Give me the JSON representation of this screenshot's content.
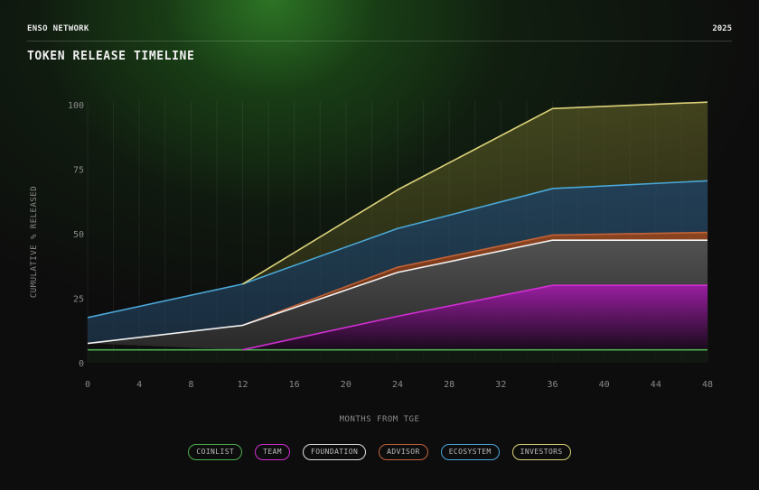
{
  "header": {
    "brand": "ENSO NETWORK",
    "year": "2025"
  },
  "title": "TOKEN RELEASE TIMELINE",
  "colors": {
    "coinlist": "#4caf50",
    "team": "#d12fd1",
    "foundation": "#f2f2f2",
    "advisor": "#c0643a",
    "ecosystem": "#4aa8d8",
    "investors": "#dcd27a"
  },
  "legend": [
    {
      "label": "COINLIST",
      "color": "#4caf50"
    },
    {
      "label": "TEAM",
      "color": "#d12fd1"
    },
    {
      "label": "FOUNDATION",
      "color": "#e0e0e0"
    },
    {
      "label": "ADVISOR",
      "color": "#c0643a"
    },
    {
      "label": "ECOSYSTEM",
      "color": "#4aa8d8"
    },
    {
      "label": "INVESTORS",
      "color": "#dcd27a"
    }
  ],
  "chart_data": {
    "type": "area",
    "title": "TOKEN RELEASE TIMELINE",
    "xlabel": "MONTHS FROM TGE",
    "ylabel": "CUMULATIVE % RELEASED",
    "xlim": [
      0,
      48
    ],
    "ylim": [
      0,
      100
    ],
    "x_ticks": [
      0,
      4,
      8,
      12,
      16,
      20,
      24,
      28,
      32,
      36,
      40,
      44,
      48
    ],
    "y_ticks": [
      0,
      25,
      50,
      75,
      100
    ],
    "stacked": true,
    "x": [
      0,
      12,
      24,
      36,
      48
    ],
    "series": [
      {
        "name": "COINLIST",
        "cumulative": [
          5,
          5,
          5,
          5,
          5
        ]
      },
      {
        "name": "TEAM",
        "cumulative": [
          null,
          5,
          18,
          30,
          30
        ]
      },
      {
        "name": "FOUNDATION",
        "cumulative": [
          7.5,
          14.5,
          35,
          47.5,
          47.5
        ]
      },
      {
        "name": "ADVISOR",
        "cumulative": [
          null,
          14.5,
          37,
          49.5,
          50.5
        ]
      },
      {
        "name": "ECOSYSTEM",
        "cumulative": [
          17.5,
          30.5,
          52,
          67.5,
          70.5
        ]
      },
      {
        "name": "INVESTORS",
        "cumulative": [
          null,
          30.5,
          67,
          98.5,
          101
        ]
      }
    ]
  }
}
